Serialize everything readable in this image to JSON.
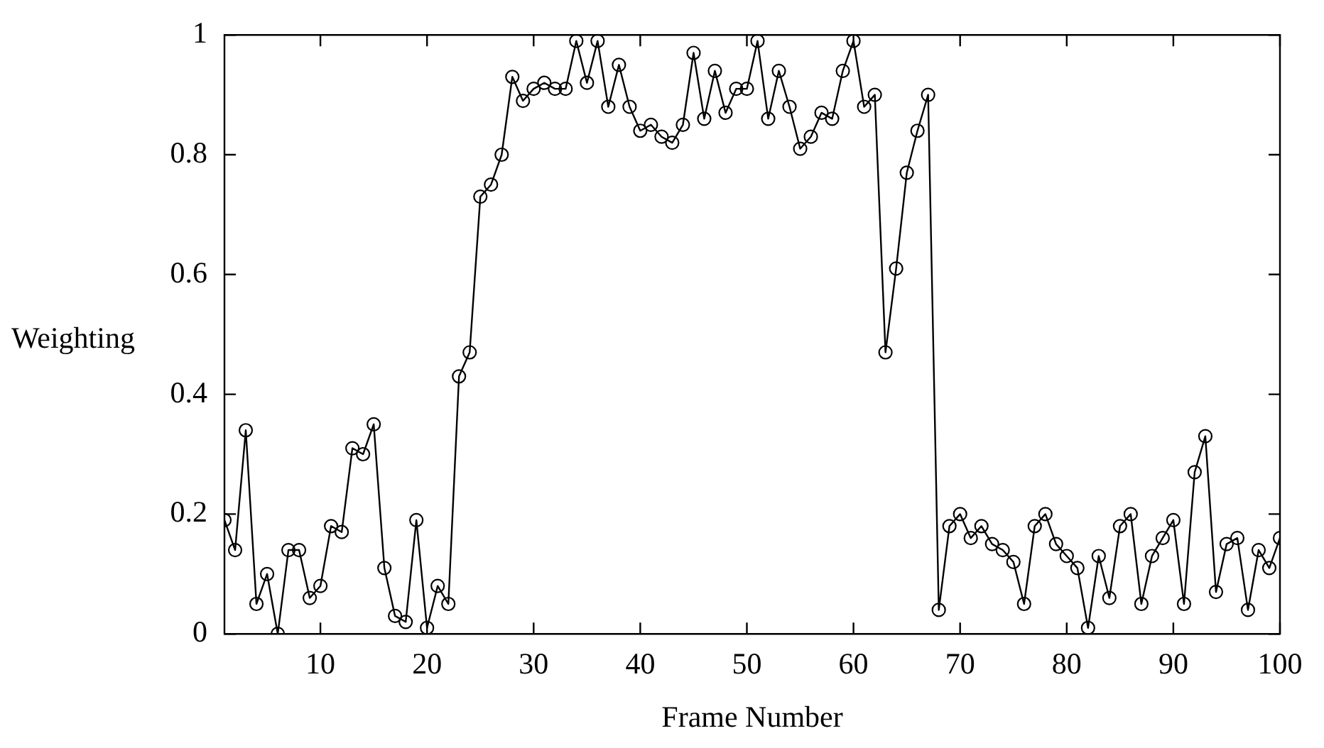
{
  "chart_data": {
    "type": "line",
    "xlabel": "Frame Number",
    "ylabel": "Weighting",
    "x": [
      1,
      2,
      3,
      4,
      5,
      6,
      7,
      8,
      9,
      10,
      11,
      12,
      13,
      14,
      15,
      16,
      17,
      18,
      19,
      20,
      21,
      22,
      23,
      24,
      25,
      26,
      27,
      28,
      29,
      30,
      31,
      32,
      33,
      34,
      35,
      36,
      37,
      38,
      39,
      40,
      41,
      42,
      43,
      44,
      45,
      46,
      47,
      48,
      49,
      50,
      51,
      52,
      53,
      54,
      55,
      56,
      57,
      58,
      59,
      60,
      61,
      62,
      63,
      64,
      65,
      66,
      67,
      68,
      69,
      70,
      71,
      72,
      73,
      74,
      75,
      76,
      77,
      78,
      79,
      80,
      81,
      82,
      83,
      84,
      85,
      86,
      87,
      88,
      89,
      90,
      91,
      92,
      93,
      94,
      95,
      96,
      97,
      98,
      99,
      100
    ],
    "series": [
      {
        "color": "#000000",
        "values": [
          0.19,
          0.14,
          0.34,
          0.05,
          0.1,
          0.0,
          0.14,
          0.14,
          0.06,
          0.08,
          0.18,
          0.17,
          0.31,
          0.3,
          0.35,
          0.11,
          0.03,
          0.02,
          0.19,
          0.01,
          0.08,
          0.05,
          0.43,
          0.47,
          0.73,
          0.75,
          0.8,
          0.93,
          0.89,
          0.91,
          0.92,
          0.91,
          0.91,
          0.99,
          0.92,
          0.99,
          0.88,
          0.95,
          0.88,
          0.84,
          0.85,
          0.83,
          0.82,
          0.85,
          0.97,
          0.86,
          0.94,
          0.87,
          0.91,
          0.91,
          0.99,
          0.86,
          0.94,
          0.88,
          0.81,
          0.83,
          0.87,
          0.86,
          0.94,
          0.99,
          0.88,
          0.9,
          0.47,
          0.61,
          0.77,
          0.84,
          0.9,
          0.04,
          0.18,
          0.2,
          0.16,
          0.18,
          0.15,
          0.14,
          0.12,
          0.05,
          0.18,
          0.2,
          0.15,
          0.13,
          0.11,
          0.01,
          0.13,
          0.06,
          0.18,
          0.2,
          0.05,
          0.13,
          0.16,
          0.19,
          0.05,
          0.27,
          0.33,
          0.07,
          0.15,
          0.16,
          0.04,
          0.14,
          0.11,
          0.16
        ]
      }
    ],
    "xlim": [
      1,
      100
    ],
    "xticks": [
      10,
      20,
      30,
      40,
      50,
      60,
      70,
      80,
      90,
      100
    ],
    "ylim": [
      0,
      1
    ],
    "yticks": [
      0,
      {
        "value": 0.2,
        "label": "0.2"
      },
      {
        "value": 0.4,
        "label": "0.4"
      },
      {
        "value": 0.6,
        "label": "0.6"
      },
      {
        "value": 0.8,
        "label": "0.8"
      },
      1
    ],
    "grid": false,
    "legend": false,
    "marker": "circle",
    "line_style": "solid"
  }
}
